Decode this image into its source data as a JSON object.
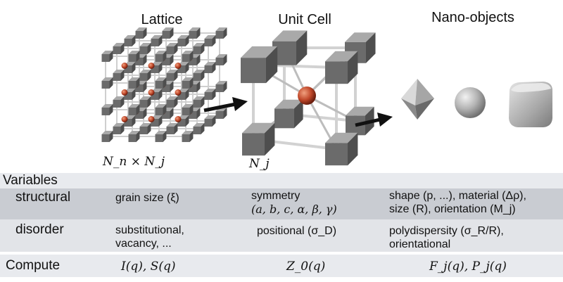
{
  "diagram": {
    "titles": {
      "lattice": "Lattice",
      "unit_cell": "Unit Cell",
      "nano_objects": "Nano-objects"
    },
    "lattice_label": "N_n × N_j",
    "unit_cell_label": "N_j",
    "colors": {
      "cube": "#6e6e6e",
      "atom": "#c0482a",
      "rod": "#d8d8d8",
      "band_dark": "#c9ccd2",
      "band_light": "#e4e6ea",
      "arrow": "#111111"
    }
  },
  "table": {
    "header": "Variables",
    "rows": [
      {
        "label": "structural",
        "lattice": "grain size (ξ)",
        "unit_cell_line1": "symmetry",
        "unit_cell_line2": "(a, b, c, α, β, γ)",
        "nano_line1": "shape (p, ...), material (Δρ),",
        "nano_line2": "size (R), orientation (M_j)"
      },
      {
        "label": "disorder",
        "lattice_line1": "substitutional,",
        "lattice_line2": "vacancy, ...",
        "unit_cell": "positional (σ_D)",
        "nano_line1": "polydispersity (σ_R/R),",
        "nano_line2": "orientational"
      },
      {
        "label": "Compute",
        "lattice": "I(q), S(q)",
        "unit_cell": "Z_0(q)",
        "nano": "F_j(q), P_j(q)"
      }
    ]
  }
}
